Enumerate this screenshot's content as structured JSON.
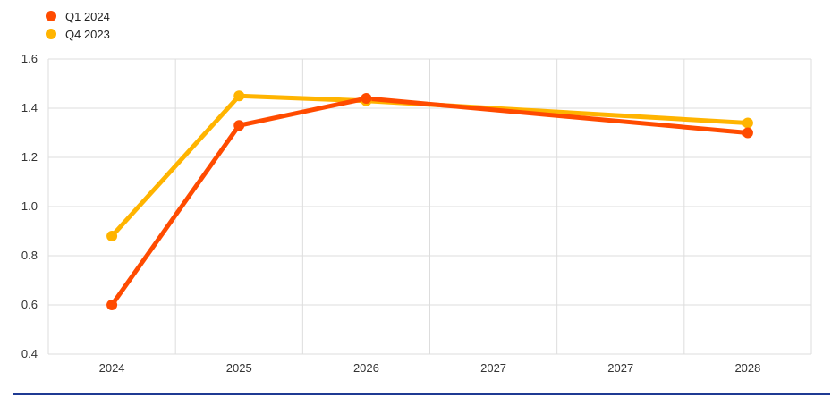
{
  "legend": [
    {
      "label": "Q1 2024",
      "color": "#ff4b00"
    },
    {
      "label": "Q4 2023",
      "color": "#ffb400"
    }
  ],
  "chart_data": {
    "type": "line",
    "categories": [
      "2024",
      "2025",
      "2026",
      "2027",
      "2027",
      "2028"
    ],
    "series": [
      {
        "name": "Q1 2024",
        "color": "#ff4b00",
        "points": [
          {
            "cat": 0,
            "y": 0.6
          },
          {
            "cat": 1,
            "y": 1.33
          },
          {
            "cat": 2,
            "y": 1.44
          },
          {
            "cat": 5,
            "y": 1.3
          }
        ]
      },
      {
        "name": "Q4 2023",
        "color": "#ffb400",
        "points": [
          {
            "cat": 0,
            "y": 0.88
          },
          {
            "cat": 1,
            "y": 1.45
          },
          {
            "cat": 2,
            "y": 1.43
          },
          {
            "cat": 5,
            "y": 1.34
          }
        ]
      }
    ],
    "ylim": [
      0.4,
      1.6
    ],
    "yticks": [
      "0.4",
      "0.6",
      "0.8",
      "1.0",
      "1.2",
      "1.4",
      "1.6"
    ],
    "grid": true,
    "legend_position": "top-left"
  }
}
